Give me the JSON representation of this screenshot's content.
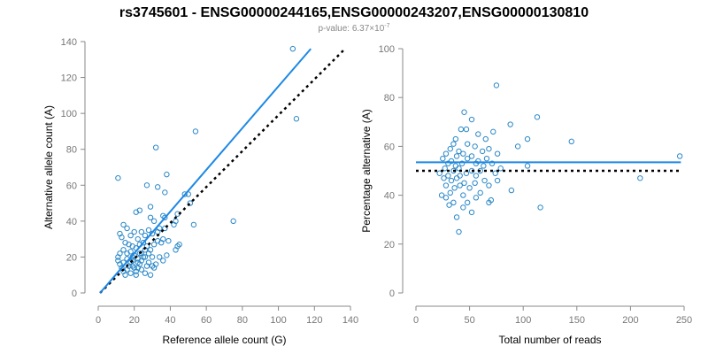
{
  "figure": {
    "title": "rs3745601 - ENSG00000244165,ENSG00000243207,ENSG00000130810",
    "pvalue_prefix": "p-value: 6.37×10",
    "pvalue_exp": "-7"
  },
  "chart_data": [
    {
      "type": "scatter",
      "xlabel": "Reference allele count (G)",
      "ylabel": "Alternative allele count (A)",
      "xlim": [
        0,
        140
      ],
      "ylim": [
        0,
        140
      ],
      "xticks": [
        0,
        20,
        40,
        60,
        80,
        100,
        120,
        140
      ],
      "yticks": [
        0,
        20,
        40,
        60,
        80,
        100,
        120,
        140
      ],
      "grid": false,
      "colors": {
        "points": "#2b88c8",
        "fit_line": "#1e88e5",
        "reference_line": "#000000"
      },
      "fit_line": {
        "x": [
          1,
          118
        ],
        "y": [
          0,
          136
        ]
      },
      "reference_line": {
        "x": [
          1,
          136
        ],
        "y": [
          0,
          135
        ]
      },
      "points": [
        {
          "x": 108,
          "y": 136
        },
        {
          "x": 110,
          "y": 97
        },
        {
          "x": 54,
          "y": 90
        },
        {
          "x": 32,
          "y": 81
        },
        {
          "x": 11,
          "y": 64
        },
        {
          "x": 38,
          "y": 66
        },
        {
          "x": 37,
          "y": 56
        },
        {
          "x": 27,
          "y": 60
        },
        {
          "x": 33,
          "y": 59
        },
        {
          "x": 75,
          "y": 40
        },
        {
          "x": 50,
          "y": 55
        },
        {
          "x": 53,
          "y": 38
        },
        {
          "x": 48,
          "y": 55
        },
        {
          "x": 51,
          "y": 50
        },
        {
          "x": 29,
          "y": 48
        },
        {
          "x": 23,
          "y": 46
        },
        {
          "x": 21,
          "y": 45
        },
        {
          "x": 36,
          "y": 43
        },
        {
          "x": 37,
          "y": 42
        },
        {
          "x": 29,
          "y": 42
        },
        {
          "x": 31,
          "y": 40
        },
        {
          "x": 44,
          "y": 44
        },
        {
          "x": 43,
          "y": 40
        },
        {
          "x": 34,
          "y": 36
        },
        {
          "x": 37,
          "y": 36
        },
        {
          "x": 42,
          "y": 38
        },
        {
          "x": 33,
          "y": 34
        },
        {
          "x": 30,
          "y": 33
        },
        {
          "x": 28,
          "y": 35
        },
        {
          "x": 26,
          "y": 32
        },
        {
          "x": 24,
          "y": 34
        },
        {
          "x": 22,
          "y": 30
        },
        {
          "x": 20,
          "y": 34
        },
        {
          "x": 18,
          "y": 32
        },
        {
          "x": 16,
          "y": 36
        },
        {
          "x": 14,
          "y": 38
        },
        {
          "x": 12,
          "y": 33
        },
        {
          "x": 13,
          "y": 31
        },
        {
          "x": 15,
          "y": 28
        },
        {
          "x": 17,
          "y": 27
        },
        {
          "x": 19,
          "y": 26
        },
        {
          "x": 21,
          "y": 25
        },
        {
          "x": 23,
          "y": 27
        },
        {
          "x": 25,
          "y": 28
        },
        {
          "x": 27,
          "y": 26
        },
        {
          "x": 29,
          "y": 24
        },
        {
          "x": 31,
          "y": 27
        },
        {
          "x": 33,
          "y": 29
        },
        {
          "x": 35,
          "y": 28
        },
        {
          "x": 36,
          "y": 30
        },
        {
          "x": 39,
          "y": 29
        },
        {
          "x": 44,
          "y": 26
        },
        {
          "x": 45,
          "y": 27
        },
        {
          "x": 43,
          "y": 24
        },
        {
          "x": 38,
          "y": 21
        },
        {
          "x": 36,
          "y": 18
        },
        {
          "x": 34,
          "y": 20
        },
        {
          "x": 32,
          "y": 16
        },
        {
          "x": 30,
          "y": 15
        },
        {
          "x": 28,
          "y": 17
        },
        {
          "x": 27,
          "y": 15
        },
        {
          "x": 26,
          "y": 20
        },
        {
          "x": 24,
          "y": 22
        },
        {
          "x": 22,
          "y": 19
        },
        {
          "x": 20,
          "y": 21
        },
        {
          "x": 18,
          "y": 23
        },
        {
          "x": 16,
          "y": 22
        },
        {
          "x": 14,
          "y": 24
        },
        {
          "x": 12,
          "y": 22
        },
        {
          "x": 11,
          "y": 20
        },
        {
          "x": 11,
          "y": 18
        },
        {
          "x": 12,
          "y": 16
        },
        {
          "x": 13,
          "y": 14
        },
        {
          "x": 14,
          "y": 12
        },
        {
          "x": 15,
          "y": 10
        },
        {
          "x": 16,
          "y": 13
        },
        {
          "x": 17,
          "y": 15
        },
        {
          "x": 18,
          "y": 17
        },
        {
          "x": 19,
          "y": 15
        },
        {
          "x": 20,
          "y": 14
        },
        {
          "x": 21,
          "y": 12
        },
        {
          "x": 22,
          "y": 14
        },
        {
          "x": 23,
          "y": 16
        },
        {
          "x": 24,
          "y": 18
        },
        {
          "x": 25,
          "y": 20
        },
        {
          "x": 26,
          "y": 24
        },
        {
          "x": 28,
          "y": 22
        },
        {
          "x": 30,
          "y": 20
        },
        {
          "x": 18,
          "y": 11
        },
        {
          "x": 21,
          "y": 10
        },
        {
          "x": 24,
          "y": 13
        },
        {
          "x": 26,
          "y": 11
        },
        {
          "x": 29,
          "y": 10
        },
        {
          "x": 31,
          "y": 14
        },
        {
          "x": 14,
          "y": 17
        },
        {
          "x": 16,
          "y": 19
        },
        {
          "x": 19,
          "y": 18
        },
        {
          "x": 22,
          "y": 17
        },
        {
          "x": 23,
          "y": 22
        },
        {
          "x": 19,
          "y": 20
        }
      ]
    },
    {
      "type": "scatter",
      "xlabel": "Total number of reads",
      "ylabel": "Percentage alternative (A)",
      "xlim": [
        0,
        250
      ],
      "ylim": [
        0,
        100
      ],
      "xticks": [
        0,
        50,
        100,
        150,
        200,
        250
      ],
      "yticks": [
        0,
        20,
        40,
        60,
        80,
        100
      ],
      "grid": false,
      "colors": {
        "points": "#2b88c8",
        "fit_line": "#1e88e5",
        "reference_line": "#000000"
      },
      "fit_line": {
        "x": [
          0,
          247
        ],
        "y": [
          53.5,
          53.5
        ]
      },
      "reference_line": {
        "x": [
          0,
          247
        ],
        "y": [
          50,
          50
        ]
      },
      "points": [
        {
          "x": 75,
          "y": 85
        },
        {
          "x": 45,
          "y": 74
        },
        {
          "x": 52,
          "y": 71
        },
        {
          "x": 113,
          "y": 72
        },
        {
          "x": 88,
          "y": 69
        },
        {
          "x": 42,
          "y": 67
        },
        {
          "x": 47,
          "y": 67
        },
        {
          "x": 72,
          "y": 66
        },
        {
          "x": 58,
          "y": 65
        },
        {
          "x": 65,
          "y": 63
        },
        {
          "x": 37,
          "y": 63
        },
        {
          "x": 104,
          "y": 63
        },
        {
          "x": 145,
          "y": 62
        },
        {
          "x": 35,
          "y": 61
        },
        {
          "x": 48,
          "y": 61
        },
        {
          "x": 55,
          "y": 60
        },
        {
          "x": 95,
          "y": 60
        },
        {
          "x": 32,
          "y": 59
        },
        {
          "x": 68,
          "y": 59
        },
        {
          "x": 40,
          "y": 58
        },
        {
          "x": 62,
          "y": 58
        },
        {
          "x": 28,
          "y": 57
        },
        {
          "x": 44,
          "y": 57
        },
        {
          "x": 76,
          "y": 57
        },
        {
          "x": 38,
          "y": 56
        },
        {
          "x": 52,
          "y": 56
        },
        {
          "x": 246,
          "y": 56
        },
        {
          "x": 25,
          "y": 55
        },
        {
          "x": 48,
          "y": 55
        },
        {
          "x": 66,
          "y": 55
        },
        {
          "x": 33,
          "y": 54
        },
        {
          "x": 58,
          "y": 54
        },
        {
          "x": 30,
          "y": 53
        },
        {
          "x": 43,
          "y": 53
        },
        {
          "x": 56,
          "y": 53
        },
        {
          "x": 71,
          "y": 53
        },
        {
          "x": 104,
          "y": 52
        },
        {
          "x": 37,
          "y": 52
        },
        {
          "x": 63,
          "y": 52
        },
        {
          "x": 27,
          "y": 51
        },
        {
          "x": 40,
          "y": 51
        },
        {
          "x": 79,
          "y": 51
        },
        {
          "x": 52,
          "y": 50
        },
        {
          "x": 35,
          "y": 50
        },
        {
          "x": 60,
          "y": 50
        },
        {
          "x": 22,
          "y": 49
        },
        {
          "x": 47,
          "y": 49
        },
        {
          "x": 74,
          "y": 49
        },
        {
          "x": 30,
          "y": 48
        },
        {
          "x": 41,
          "y": 48
        },
        {
          "x": 56,
          "y": 48
        },
        {
          "x": 209,
          "y": 47
        },
        {
          "x": 26,
          "y": 47
        },
        {
          "x": 38,
          "y": 47
        },
        {
          "x": 64,
          "y": 46
        },
        {
          "x": 76,
          "y": 46
        },
        {
          "x": 33,
          "y": 46
        },
        {
          "x": 45,
          "y": 45
        },
        {
          "x": 55,
          "y": 45
        },
        {
          "x": 28,
          "y": 44
        },
        {
          "x": 41,
          "y": 44
        },
        {
          "x": 68,
          "y": 44
        },
        {
          "x": 36,
          "y": 43
        },
        {
          "x": 50,
          "y": 43
        },
        {
          "x": 89,
          "y": 42
        },
        {
          "x": 32,
          "y": 41
        },
        {
          "x": 60,
          "y": 41
        },
        {
          "x": 24,
          "y": 40
        },
        {
          "x": 44,
          "y": 40
        },
        {
          "x": 28,
          "y": 39
        },
        {
          "x": 56,
          "y": 39
        },
        {
          "x": 70,
          "y": 38
        },
        {
          "x": 35,
          "y": 37
        },
        {
          "x": 48,
          "y": 37
        },
        {
          "x": 68,
          "y": 37
        },
        {
          "x": 31,
          "y": 36
        },
        {
          "x": 44,
          "y": 35
        },
        {
          "x": 116,
          "y": 35
        },
        {
          "x": 52,
          "y": 33
        },
        {
          "x": 38,
          "y": 31
        },
        {
          "x": 40,
          "y": 25
        }
      ]
    }
  ]
}
